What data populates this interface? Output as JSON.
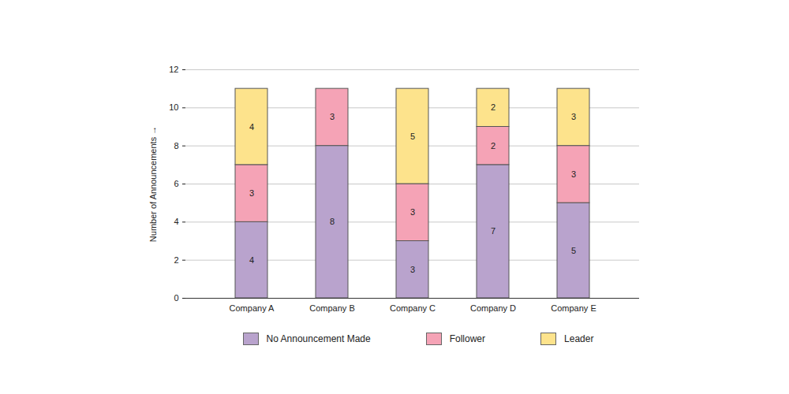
{
  "chart_data": {
    "type": "bar",
    "stacked": true,
    "data_labels": true,
    "categories": [
      "Company A",
      "Company B",
      "Company C",
      "Company D",
      "Company E"
    ],
    "series": [
      {
        "name": "No Announcement Made",
        "color": "#b9a3cd",
        "values": [
          4,
          8,
          3,
          7,
          5
        ]
      },
      {
        "name": "Follower",
        "color": "#f5a3b6",
        "values": [
          3,
          3,
          3,
          2,
          3
        ]
      },
      {
        "name": "Leader",
        "color": "#fde38c",
        "values": [
          4,
          0,
          5,
          2,
          3
        ]
      }
    ],
    "ylabel": "Number of Announcements",
    "ylim": [
      0,
      12
    ],
    "yticks": [
      0,
      2,
      4,
      6,
      8,
      10,
      12
    ],
    "grid": true,
    "legend": "bottom"
  }
}
